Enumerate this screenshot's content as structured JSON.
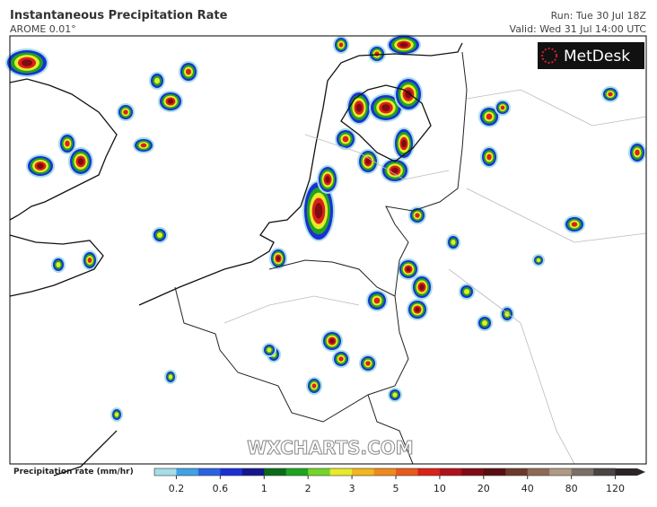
{
  "header": {
    "title": "Instantaneous Precipitation Rate",
    "subtitle": "AROME 0.01°",
    "run": "Run: Tue 30 Jul 18Z",
    "valid": "Valid: Wed 31 Jul 14:00 UTC"
  },
  "logo": "MetDesk",
  "watermark": "WXCHARTS.COM",
  "colorbar": {
    "label": "Precipitation rate (mm/hr)",
    "colors": [
      "#a6dde6",
      "#3fa2e6",
      "#2a63e0",
      "#1b2fd6",
      "#14168f",
      "#0b6a19",
      "#1ea41e",
      "#73d42a",
      "#e8ea2a",
      "#f2b61f",
      "#f08a1c",
      "#e95a1a",
      "#d8221a",
      "#b0121a",
      "#800b12",
      "#5a0d10",
      "#6b3a2a",
      "#8e6a55",
      "#b09a84",
      "#7a6f66",
      "#4a4444",
      "#2a2628"
    ],
    "labels": [
      0.2,
      0.6,
      1,
      2,
      3,
      5,
      10,
      20,
      40,
      80,
      120
    ]
  }
}
